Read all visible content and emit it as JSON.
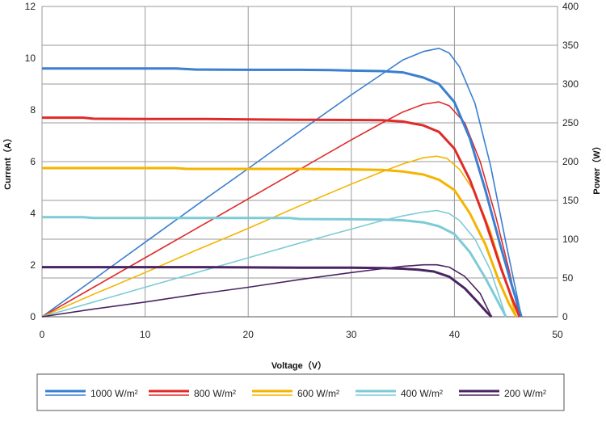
{
  "chart_data": {
    "type": "line",
    "xlabel": "Voltage（V）",
    "ylabel": "Current（A）",
    "y2label": "Power（W）",
    "xlim": [
      0,
      50
    ],
    "ylim": [
      0,
      12
    ],
    "y2lim": [
      0,
      400
    ],
    "xticks": [
      "0",
      "10",
      "20",
      "30",
      "40",
      "50"
    ],
    "yticks": [
      "0",
      "2",
      "4",
      "6",
      "8",
      "10",
      "12"
    ],
    "y2ticks": [
      "0",
      "50",
      "100",
      "150",
      "200",
      "250",
      "300",
      "350",
      "400"
    ],
    "grid": true,
    "legend_position": "bottom",
    "series": [
      {
        "name": "1000 W/m²",
        "color": "#3a7fd0",
        "current": {
          "x": [
            0,
            5,
            10,
            13,
            15,
            20,
            25,
            28,
            30,
            33,
            35,
            37,
            38.5,
            40,
            41.5,
            43,
            44.5,
            45.5,
            46.5
          ],
          "y": [
            9.6,
            9.6,
            9.6,
            9.6,
            9.56,
            9.55,
            9.55,
            9.54,
            9.52,
            9.5,
            9.45,
            9.25,
            9.0,
            8.3,
            6.9,
            4.9,
            2.7,
            1.3,
            0
          ]
        },
        "power": {
          "x": [
            0,
            5,
            10,
            15,
            20,
            25,
            30,
            33,
            35,
            37,
            38.5,
            39.5,
            40.5,
            42,
            43.5,
            45,
            46.5
          ],
          "y": [
            0,
            48,
            96,
            144,
            191,
            239,
            286,
            313,
            331,
            342,
            346,
            340,
            322,
            275,
            195,
            95,
            0
          ]
        }
      },
      {
        "name": "800 W/m²",
        "color": "#e02a2a",
        "current": {
          "x": [
            0,
            4,
            5,
            10,
            15,
            20,
            25,
            30,
            33,
            35,
            37,
            38.5,
            40,
            41.5,
            43,
            44.5,
            45.5,
            46.3
          ],
          "y": [
            7.7,
            7.7,
            7.66,
            7.65,
            7.65,
            7.63,
            7.62,
            7.61,
            7.6,
            7.55,
            7.4,
            7.15,
            6.5,
            5.3,
            3.7,
            1.9,
            0.8,
            0
          ]
        },
        "power": {
          "x": [
            0,
            5,
            10,
            15,
            20,
            25,
            30,
            33,
            35,
            37,
            38.5,
            39.5,
            41,
            42.5,
            44,
            45.3,
            46.3
          ],
          "y": [
            0,
            38,
            76,
            114,
            152,
            190,
            228,
            250,
            264,
            274,
            277,
            272,
            250,
            200,
            130,
            60,
            0
          ]
        }
      },
      {
        "name": "600 W/m²",
        "color": "#f5b400",
        "current": {
          "x": [
            0,
            5,
            10,
            13,
            14,
            20,
            25,
            30,
            33,
            35,
            37,
            38.5,
            40,
            41.5,
            43,
            44.3,
            45.3,
            46.0
          ],
          "y": [
            5.75,
            5.75,
            5.75,
            5.75,
            5.72,
            5.72,
            5.72,
            5.7,
            5.68,
            5.62,
            5.5,
            5.3,
            4.9,
            4.0,
            2.8,
            1.4,
            0.5,
            0
          ]
        },
        "power": {
          "x": [
            0,
            5,
            10,
            15,
            20,
            25,
            30,
            33,
            35,
            37,
            38.3,
            39.3,
            40.5,
            42,
            43.5,
            45,
            46.0
          ],
          "y": [
            0,
            29,
            57,
            86,
            114,
            143,
            171,
            187,
            197,
            205,
            207,
            204,
            190,
            160,
            110,
            45,
            0
          ]
        }
      },
      {
        "name": "400 W/m²",
        "color": "#7ecbd6",
        "current": {
          "x": [
            0,
            4,
            5,
            10,
            15,
            20,
            24,
            25,
            30,
            33,
            35,
            37,
            38.5,
            40,
            41.5,
            43,
            44.2,
            45.0
          ],
          "y": [
            3.85,
            3.85,
            3.82,
            3.82,
            3.82,
            3.82,
            3.82,
            3.78,
            3.77,
            3.76,
            3.73,
            3.65,
            3.5,
            3.2,
            2.5,
            1.5,
            0.6,
            0
          ]
        },
        "power": {
          "x": [
            0,
            5,
            10,
            15,
            20,
            25,
            30,
            33,
            35,
            37,
            38.3,
            39.5,
            40.5,
            42,
            43.5,
            45.0
          ],
          "y": [
            0,
            19,
            38,
            57,
            76,
            95,
            113,
            124,
            130,
            135,
            137,
            133,
            124,
            100,
            60,
            0
          ]
        }
      },
      {
        "name": "200 W/m²",
        "color": "#4a2462",
        "current": {
          "x": [
            0,
            5,
            10,
            15,
            20,
            25,
            30,
            33,
            35,
            36.5,
            38,
            39.5,
            41,
            42.3,
            43.2,
            43.6
          ],
          "y": [
            1.92,
            1.92,
            1.92,
            1.92,
            1.91,
            1.9,
            1.9,
            1.88,
            1.86,
            1.82,
            1.75,
            1.55,
            1.1,
            0.55,
            0.15,
            0
          ]
        },
        "power": {
          "x": [
            0,
            5,
            10,
            15,
            20,
            25,
            30,
            33,
            35,
            37,
            38.3,
            39.5,
            41,
            42.5,
            43.6
          ],
          "y": [
            0,
            10,
            19,
            29,
            38,
            48,
            57,
            62,
            65,
            67,
            67,
            64,
            52,
            30,
            0
          ]
        }
      }
    ]
  }
}
